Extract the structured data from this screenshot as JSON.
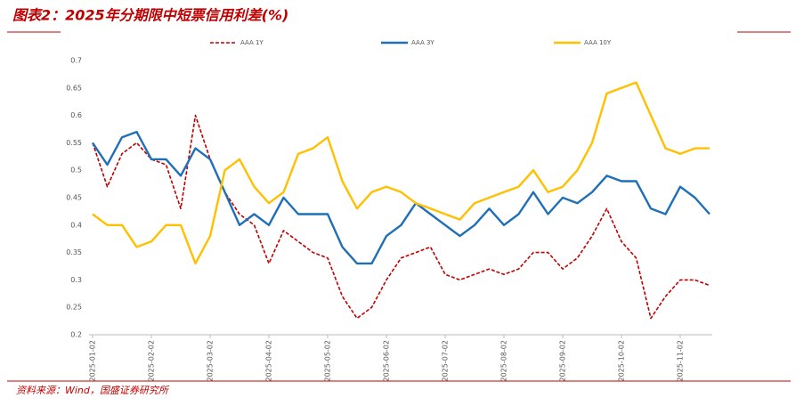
{
  "chart_data": {
    "type": "line",
    "title": "图表2：2025年分期限中短票信用利差(%)",
    "source": "资料来源：Wind，国盛证券研究所",
    "categories": [
      "2025-01-02",
      null,
      null,
      null,
      "2025-02-02",
      null,
      null,
      null,
      "2025-03-02",
      null,
      null,
      null,
      "2025-04-02",
      null,
      null,
      null,
      "2025-05-02",
      null,
      null,
      null,
      "2025-06-02",
      null,
      null,
      null,
      "2025-07-02",
      null,
      null,
      null,
      "2025-08-02",
      null,
      null,
      null,
      "2025-09-02",
      null,
      null,
      null,
      "2025-10-02",
      null,
      null,
      null,
      "2025-11-02",
      null,
      null
    ],
    "series": [
      {
        "name": "AAA 1Y",
        "color": "#c00000",
        "dash": true,
        "values": [
          0.55,
          0.47,
          0.53,
          0.55,
          0.52,
          0.51,
          0.43,
          0.6,
          0.52,
          0.46,
          0.42,
          0.4,
          0.33,
          0.39,
          0.37,
          0.35,
          0.34,
          0.27,
          0.23,
          0.25,
          0.3,
          0.34,
          0.35,
          0.36,
          0.31,
          0.3,
          0.31,
          0.32,
          0.31,
          0.32,
          0.35,
          0.35,
          0.32,
          0.34,
          0.38,
          0.43,
          0.37,
          0.34,
          0.23,
          0.27,
          0.3,
          0.3,
          0.29
        ]
      },
      {
        "name": "AAA 3Y",
        "color": "#1f6fb8",
        "dash": false,
        "values": [
          0.55,
          0.51,
          0.56,
          0.57,
          0.52,
          0.52,
          0.49,
          0.54,
          0.52,
          0.46,
          0.4,
          0.42,
          0.4,
          0.45,
          0.42,
          0.42,
          0.42,
          0.36,
          0.33,
          0.33,
          0.38,
          0.4,
          0.44,
          0.42,
          0.4,
          0.38,
          0.4,
          0.43,
          0.4,
          0.42,
          0.46,
          0.42,
          0.45,
          0.44,
          0.46,
          0.49,
          0.48,
          0.48,
          0.43,
          0.42,
          0.47,
          0.45,
          0.42
        ]
      },
      {
        "name": "AAA 10Y",
        "color": "#ffc000",
        "dash": false,
        "values": [
          0.42,
          0.4,
          0.4,
          0.36,
          0.37,
          0.4,
          0.4,
          0.33,
          0.38,
          0.5,
          0.52,
          0.47,
          0.44,
          0.46,
          0.53,
          0.54,
          0.56,
          0.48,
          0.43,
          0.46,
          0.47,
          0.46,
          0.44,
          0.43,
          0.42,
          0.41,
          0.44,
          0.45,
          0.46,
          0.47,
          0.5,
          0.46,
          0.47,
          0.5,
          0.55,
          0.64,
          0.65,
          0.66,
          0.6,
          0.54,
          0.53,
          0.54,
          0.54
        ]
      }
    ],
    "ylim": [
      0.2,
      0.7
    ],
    "yticks": [
      0.2,
      0.25,
      0.3,
      0.35,
      0.4,
      0.45,
      0.5,
      0.55,
      0.6,
      0.65,
      0.7
    ],
    "grid": false,
    "legend": "top"
  }
}
